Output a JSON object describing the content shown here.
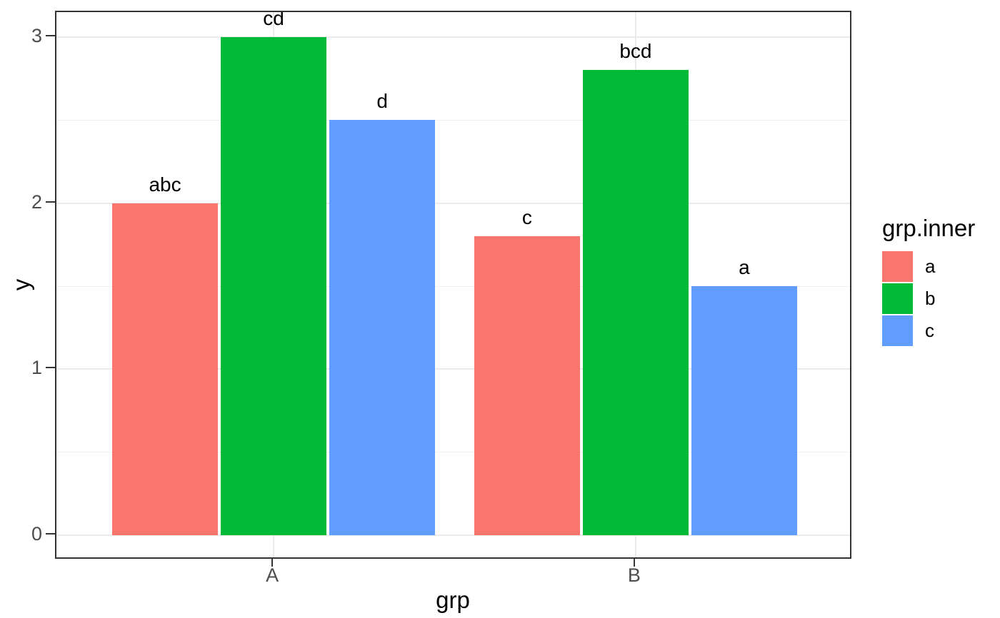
{
  "chart_data": {
    "type": "bar",
    "title": "",
    "xlabel": "grp",
    "ylabel": "y",
    "categories": [
      "A",
      "B"
    ],
    "series": [
      {
        "name": "a",
        "color": "#F8766D",
        "values": [
          2.0,
          1.8
        ],
        "bar_labels": [
          "abc",
          "c"
        ]
      },
      {
        "name": "b",
        "color": "#00BA38",
        "values": [
          3.0,
          2.8
        ],
        "bar_labels": [
          "cd",
          "bcd"
        ]
      },
      {
        "name": "c",
        "color": "#619CFF",
        "values": [
          2.5,
          1.5
        ],
        "bar_labels": [
          "d",
          "a"
        ]
      }
    ],
    "y_ticks": [
      0,
      1,
      2,
      3
    ],
    "y_minor_ticks": [
      0.5,
      1.5,
      2.5
    ],
    "ylim": [
      -0.15,
      3.15
    ],
    "bar_group_width": 0.9,
    "grid": "on",
    "legend": {
      "title": "grp.inner",
      "position": "right",
      "entries": [
        "a",
        "b",
        "c"
      ]
    },
    "theme": {
      "background": "#FFFFFF",
      "panel_border": "#333333",
      "grid_major": "#EBEBEB",
      "grid_minor": "#F0F0F0",
      "tick_color": "#333333",
      "tick_label_color": "#4D4D4D",
      "text_color": "#000000"
    }
  }
}
